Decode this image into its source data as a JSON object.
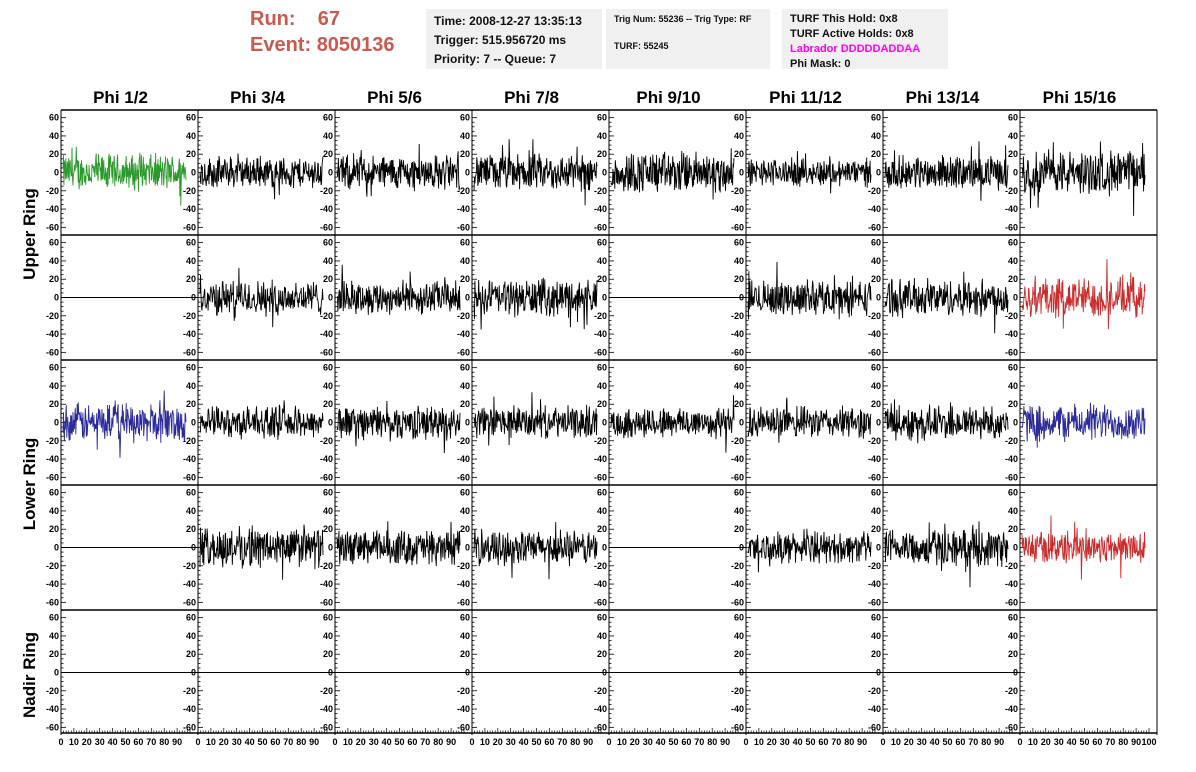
{
  "header": {
    "run_label": "Run:",
    "run_value": "67",
    "event_label": "Event:",
    "event_value": "8050136"
  },
  "info_time": {
    "time": "Time: 2008-12-27 13:35:13",
    "trigger": "Trigger: 515.956720 ms",
    "priority": "Priority: 7 -- Queue: 7"
  },
  "info_trig": {
    "trig": "Trig Num: 55236 -- Trig Type: RF",
    "turf": "TURF: 55245"
  },
  "info_turf": {
    "this_hold": "TURF This Hold: 0x8",
    "active_holds": "TURF Active Holds: 0x8",
    "labrador": "Labrador DDDDDADDAA",
    "phi_mask": "Phi Mask: 0"
  },
  "columns": [
    "Phi 1/2",
    "Phi 3/4",
    "Phi 5/6",
    "Phi 7/8",
    "Phi 9/10",
    "Phi 11/12",
    "Phi 13/14",
    "Phi 15/16"
  ],
  "ring_labels": {
    "upper": "Upper Ring",
    "lower": "Lower Ring",
    "nadir": "Nadir Ring"
  },
  "colors": {
    "green": "#2a9a2a",
    "red": "#cc2b2b",
    "blue": "#2b2b9a",
    "black": "#000000",
    "magenta": "#ff00ff",
    "title_red": "#c85a50"
  },
  "chart_data": {
    "type": "line",
    "ylim": [
      -64,
      64
    ],
    "y_ticks": [
      -60,
      -40,
      -20,
      0,
      20,
      40,
      60
    ],
    "xlim": [
      0,
      100
    ],
    "x_tick_labels": [
      "0",
      "10",
      "20",
      "30",
      "40",
      "50",
      "60",
      "70",
      "80",
      "90",
      "100"
    ],
    "rows": [
      {
        "ring": "upper",
        "panels": [
          {
            "color": "green",
            "amp": 20,
            "flat": false
          },
          {
            "color": "black",
            "amp": 17,
            "flat": false
          },
          {
            "color": "black",
            "amp": 19,
            "flat": false
          },
          {
            "color": "black",
            "amp": 20,
            "flat": false
          },
          {
            "color": "black",
            "amp": 23,
            "flat": false
          },
          {
            "color": "black",
            "amp": 15,
            "flat": false
          },
          {
            "color": "black",
            "amp": 18,
            "flat": false
          },
          {
            "color": "black",
            "amp": 24,
            "flat": false
          }
        ]
      },
      {
        "ring": "upper",
        "panels": [
          {
            "color": "black",
            "amp": 0,
            "flat": true
          },
          {
            "color": "black",
            "amp": 19,
            "flat": false
          },
          {
            "color": "black",
            "amp": 18,
            "flat": false
          },
          {
            "color": "black",
            "amp": 20,
            "flat": false
          },
          {
            "color": "black",
            "amp": 0,
            "flat": true
          },
          {
            "color": "black",
            "amp": 19,
            "flat": false
          },
          {
            "color": "black",
            "amp": 20,
            "flat": false
          },
          {
            "color": "red",
            "amp": 22,
            "flat": false
          }
        ]
      },
      {
        "ring": "lower",
        "panels": [
          {
            "color": "blue",
            "amp": 21,
            "flat": false
          },
          {
            "color": "black",
            "amp": 17,
            "flat": false
          },
          {
            "color": "black",
            "amp": 18,
            "flat": false
          },
          {
            "color": "black",
            "amp": 17,
            "flat": false
          },
          {
            "color": "black",
            "amp": 17,
            "flat": false
          },
          {
            "color": "black",
            "amp": 17,
            "flat": false
          },
          {
            "color": "black",
            "amp": 19,
            "flat": false
          },
          {
            "color": "blue",
            "amp": 20,
            "flat": false
          }
        ]
      },
      {
        "ring": "lower",
        "panels": [
          {
            "color": "black",
            "amp": 0,
            "flat": true
          },
          {
            "color": "black",
            "amp": 22,
            "flat": false
          },
          {
            "color": "black",
            "amp": 19,
            "flat": false
          },
          {
            "color": "black",
            "amp": 18,
            "flat": false
          },
          {
            "color": "black",
            "amp": 0,
            "flat": true
          },
          {
            "color": "black",
            "amp": 17,
            "flat": false
          },
          {
            "color": "black",
            "amp": 20,
            "flat": false
          },
          {
            "color": "red",
            "amp": 18,
            "flat": false
          }
        ]
      },
      {
        "ring": "nadir",
        "panels": [
          {
            "color": "black",
            "amp": 0,
            "flat": true
          },
          {
            "color": "black",
            "amp": 0,
            "flat": true
          },
          {
            "color": "black",
            "amp": 0,
            "flat": true
          },
          {
            "color": "black",
            "amp": 0,
            "flat": true
          },
          {
            "color": "black",
            "amp": 0,
            "flat": true
          },
          {
            "color": "black",
            "amp": 0,
            "flat": true
          },
          {
            "color": "black",
            "amp": 0,
            "flat": true
          },
          {
            "color": "none",
            "amp": 0,
            "flat": true
          }
        ]
      }
    ]
  }
}
